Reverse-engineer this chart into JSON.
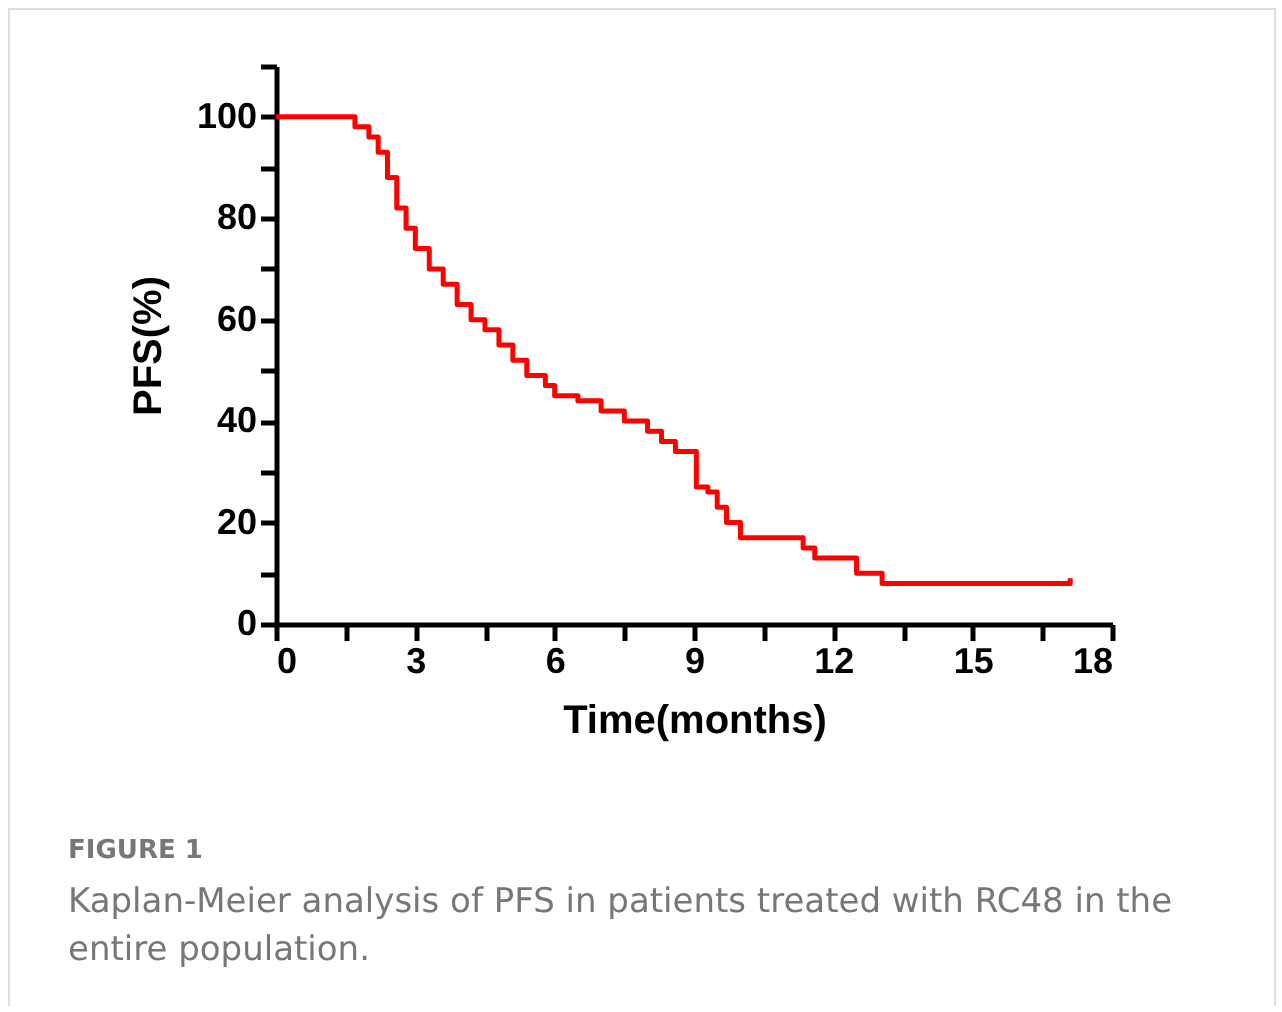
{
  "chart_data": {
    "type": "step",
    "xlabel": "Time(months)",
    "ylabel": "PFS(%)",
    "x": [
      0,
      1.3,
      1.7,
      2.0,
      2.2,
      2.4,
      2.6,
      2.8,
      3.0,
      3.3,
      3.6,
      3.9,
      4.2,
      4.5,
      4.8,
      5.1,
      5.4,
      5.8,
      6.0,
      6.5,
      7.0,
      7.5,
      8.0,
      8.3,
      8.6,
      9.05,
      9.3,
      9.5,
      9.7,
      10.0,
      11.35,
      11.6,
      12.5,
      13.05,
      17.1
    ],
    "series": [
      {
        "color": "#ff0000",
        "values": [
          100,
          100,
          98,
          96,
          93,
          88,
          82,
          78,
          74,
          70,
          67,
          63,
          60,
          58,
          55,
          52,
          49,
          47,
          45,
          44,
          42,
          40,
          38,
          36,
          34,
          27,
          26,
          23,
          20,
          17,
          15,
          13,
          10,
          8,
          9
        ]
      }
    ],
    "xlim": [
      0,
      18
    ],
    "ylim": [
      0,
      110
    ],
    "xticks": [
      0,
      {
        "value": 1.5,
        "label": null
      },
      3,
      {
        "value": 4.5,
        "label": null
      },
      6,
      {
        "value": 7.5,
        "label": null
      },
      9,
      {
        "value": 10.5,
        "label": null
      },
      12,
      {
        "value": 13.5,
        "label": null
      },
      15,
      {
        "value": 16.5,
        "label": null
      },
      18
    ],
    "yticks": [
      0,
      {
        "value": 10,
        "label": null
      },
      20,
      {
        "value": 30,
        "label": null
      },
      40,
      {
        "value": 50,
        "label": null
      },
      60,
      {
        "value": 70,
        "label": null
      },
      80,
      {
        "value": 90,
        "label": null
      },
      100,
      {
        "value": 110,
        "label": null
      }
    ],
    "grid": false,
    "line_style": "solid",
    "marker": "none",
    "annotations": [
      "FIGURE 1",
      "Kaplan-Meier analysis of PFS in patients treated with RC48 in the entire population."
    ]
  }
}
